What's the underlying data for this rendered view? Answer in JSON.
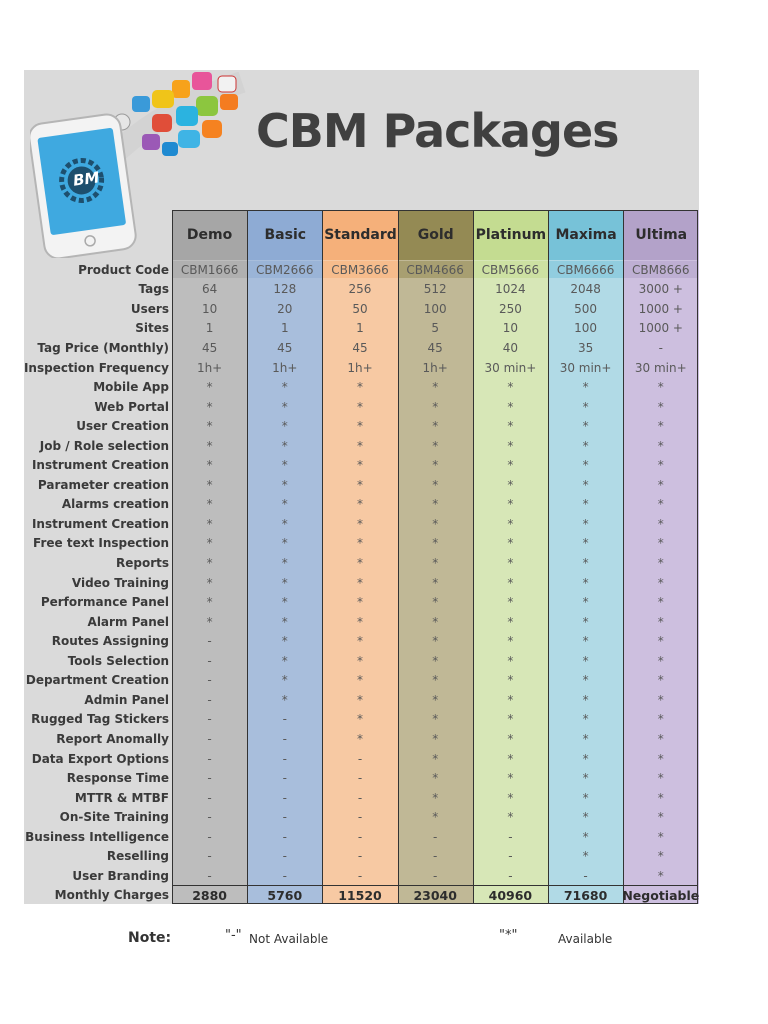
{
  "title": "CBM Packages",
  "logo_text": "BM",
  "colors": {
    "Demo": "#bdbdbd",
    "Basic": "#a8bedc",
    "Standard": "#f7c9a3",
    "Gold": "#c0b896",
    "Platinum": "#d7e7b7",
    "Maxima": "#b1dae6",
    "Ultima": "#cdbfdf",
    "Demo_head": "#a6a6a6",
    "Basic_head": "#8eabd4",
    "Standard_head": "#f5b07a",
    "Gold_head": "#948a54",
    "Platinum_head": "#c4dc91",
    "Maxima_head": "#77c2d8",
    "Ultima_head": "#b3a2c9"
  },
  "packages": [
    "Demo",
    "Basic",
    "Standard",
    "Gold",
    "Platinum",
    "Maxima",
    "Ultima"
  ],
  "rows": [
    {
      "label": "Product Code",
      "values": [
        "CBM1666",
        "CBM2666",
        "CBM3666",
        "CBM4666",
        "CBM5666",
        "CBM6666",
        "CBM8666"
      ]
    },
    {
      "label": "Tags",
      "values": [
        "64",
        "128",
        "256",
        "512",
        "1024",
        "2048",
        "3000 +"
      ]
    },
    {
      "label": "Users",
      "values": [
        "10",
        "20",
        "50",
        "100",
        "250",
        "500",
        "1000 +"
      ]
    },
    {
      "label": "Sites",
      "values": [
        "1",
        "1",
        "1",
        "5",
        "10",
        "100",
        "1000 +"
      ]
    },
    {
      "label": "Tag Price (Monthly)",
      "values": [
        "45",
        "45",
        "45",
        "45",
        "40",
        "35",
        "-"
      ]
    },
    {
      "label": "Inspection Frequency",
      "values": [
        "1h+",
        "1h+",
        "1h+",
        "1h+",
        "30 min+",
        "30 min+",
        "30 min+"
      ]
    },
    {
      "label": "Mobile App",
      "values": [
        "*",
        "*",
        "*",
        "*",
        "*",
        "*",
        "*"
      ]
    },
    {
      "label": "Web Portal",
      "values": [
        "*",
        "*",
        "*",
        "*",
        "*",
        "*",
        "*"
      ]
    },
    {
      "label": "User Creation",
      "values": [
        "*",
        "*",
        "*",
        "*",
        "*",
        "*",
        "*"
      ]
    },
    {
      "label": "Job / Role selection",
      "values": [
        "*",
        "*",
        "*",
        "*",
        "*",
        "*",
        "*"
      ]
    },
    {
      "label": "Instrument Creation",
      "values": [
        "*",
        "*",
        "*",
        "*",
        "*",
        "*",
        "*"
      ]
    },
    {
      "label": "Parameter creation",
      "values": [
        "*",
        "*",
        "*",
        "*",
        "*",
        "*",
        "*"
      ]
    },
    {
      "label": "Alarms creation",
      "values": [
        "*",
        "*",
        "*",
        "*",
        "*",
        "*",
        "*"
      ]
    },
    {
      "label": "Instrument Creation",
      "values": [
        "*",
        "*",
        "*",
        "*",
        "*",
        "*",
        "*"
      ]
    },
    {
      "label": "Free text Inspection",
      "values": [
        "*",
        "*",
        "*",
        "*",
        "*",
        "*",
        "*"
      ]
    },
    {
      "label": "Reports",
      "values": [
        "*",
        "*",
        "*",
        "*",
        "*",
        "*",
        "*"
      ]
    },
    {
      "label": "Video Training",
      "values": [
        "*",
        "*",
        "*",
        "*",
        "*",
        "*",
        "*"
      ]
    },
    {
      "label": "Performance Panel",
      "values": [
        "*",
        "*",
        "*",
        "*",
        "*",
        "*",
        "*"
      ]
    },
    {
      "label": "Alarm Panel",
      "values": [
        "*",
        "*",
        "*",
        "*",
        "*",
        "*",
        "*"
      ]
    },
    {
      "label": "Routes Assigning",
      "values": [
        "-",
        "*",
        "*",
        "*",
        "*",
        "*",
        "*"
      ]
    },
    {
      "label": "Tools Selection",
      "values": [
        "-",
        "*",
        "*",
        "*",
        "*",
        "*",
        "*"
      ]
    },
    {
      "label": "Department Creation",
      "values": [
        "-",
        "*",
        "*",
        "*",
        "*",
        "*",
        "*"
      ]
    },
    {
      "label": "Admin Panel",
      "values": [
        "-",
        "*",
        "*",
        "*",
        "*",
        "*",
        "*"
      ]
    },
    {
      "label": "Rugged Tag Stickers",
      "values": [
        "-",
        "-",
        "*",
        "*",
        "*",
        "*",
        "*"
      ]
    },
    {
      "label": "Report Anomally",
      "values": [
        "-",
        "-",
        "*",
        "*",
        "*",
        "*",
        "*"
      ]
    },
    {
      "label": "Data Export Options",
      "values": [
        "-",
        "-",
        "-",
        "*",
        "*",
        "*",
        "*"
      ]
    },
    {
      "label": "Response Time",
      "values": [
        "-",
        "-",
        "-",
        "*",
        "*",
        "*",
        "*"
      ]
    },
    {
      "label": "MTTR & MTBF",
      "values": [
        "-",
        "-",
        "-",
        "*",
        "*",
        "*",
        "*"
      ]
    },
    {
      "label": "On-Site Training",
      "values": [
        "-",
        "-",
        "-",
        "*",
        "*",
        "*",
        "*"
      ]
    },
    {
      "label": "Business Intelligence",
      "values": [
        "-",
        "-",
        "-",
        "-",
        "-",
        "*",
        "*"
      ]
    },
    {
      "label": "Reselling",
      "values": [
        "-",
        "-",
        "-",
        "-",
        "-",
        "*",
        "*"
      ]
    },
    {
      "label": "User Branding",
      "values": [
        "-",
        "-",
        "-",
        "-",
        "-",
        "-",
        "*"
      ]
    },
    {
      "label": "Monthly Charges",
      "values": [
        "2880",
        "5760",
        "11520",
        "23040",
        "40960",
        "71680",
        "Negotiable"
      ]
    }
  ],
  "note": {
    "label": "Note:",
    "dash_symbol": "\"-\"",
    "dash_text": "Not Available",
    "star_symbol": "\"*\"",
    "star_text": "Available"
  }
}
